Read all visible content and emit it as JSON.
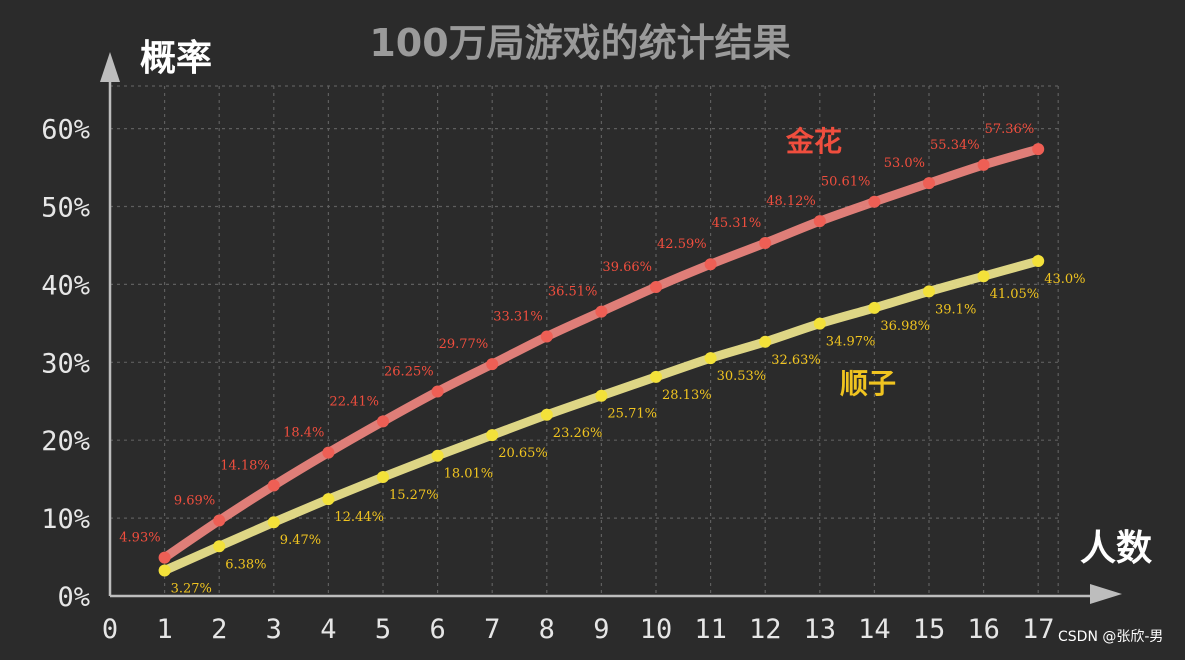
{
  "title": "100万局游戏的统计结果",
  "watermark": "CSDN @张欣-男",
  "colors": {
    "background": "#2b2b2b",
    "jinhua_line": "#e9837c",
    "jinhua_point": "#ee5f55",
    "jinhua_text": "#f04e3e",
    "shunzi_line": "#e8df8a",
    "shunzi_point": "#f3e13a",
    "shunzi_text": "#f0c420"
  },
  "chart_data": {
    "type": "line",
    "title": "100万局游戏的统计结果",
    "xlabel": "人数",
    "ylabel": "概率",
    "x": [
      1,
      2,
      3,
      4,
      5,
      6,
      7,
      8,
      9,
      10,
      11,
      12,
      13,
      14,
      15,
      16,
      17
    ],
    "x_ticks": [
      "0",
      "1",
      "2",
      "3",
      "4",
      "5",
      "6",
      "7",
      "8",
      "9",
      "10",
      "11",
      "12",
      "13",
      "14",
      "15",
      "16",
      "17"
    ],
    "y_ticks": [
      "0%",
      "10%",
      "20%",
      "30%",
      "40%",
      "50%",
      "60%"
    ],
    "xlim": [
      0,
      17
    ],
    "ylim": [
      0,
      60
    ],
    "grid": true,
    "series": [
      {
        "name": "金花",
        "values": [
          4.93,
          9.69,
          14.18,
          18.4,
          22.41,
          26.25,
          29.77,
          33.31,
          36.51,
          39.66,
          42.59,
          45.31,
          48.12,
          50.61,
          53.0,
          55.34,
          57.36
        ],
        "labels": [
          "4.93%",
          "9.69%",
          "14.18%",
          "18.4%",
          "22.41%",
          "26.25%",
          "29.77%",
          "33.31%",
          "36.51%",
          "39.66%",
          "42.59%",
          "45.31%",
          "48.12%",
          "50.61%",
          "53.0%",
          "55.34%",
          "57.36%"
        ]
      },
      {
        "name": "顺子",
        "values": [
          3.27,
          6.38,
          9.47,
          12.44,
          15.27,
          18.01,
          20.65,
          23.26,
          25.71,
          28.13,
          30.53,
          32.63,
          34.97,
          36.98,
          39.1,
          41.05,
          43.0
        ],
        "labels": [
          "3.27%",
          "6.38%",
          "9.47%",
          "12.44%",
          "15.27%",
          "18.01%",
          "20.65%",
          "23.26%",
          "25.71%",
          "28.13%",
          "30.53%",
          "32.63%",
          "34.97%",
          "36.98%",
          "39.1%",
          "41.05%",
          "43.0%"
        ]
      }
    ]
  }
}
